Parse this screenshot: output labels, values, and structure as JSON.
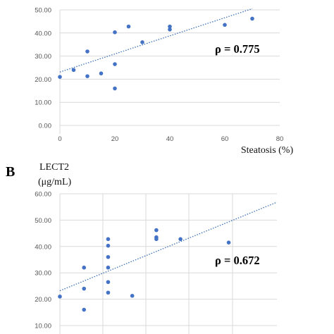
{
  "colors": {
    "points": "#4472c4",
    "trendline": "#3a6fb5",
    "gridlines": "#d9d9d9",
    "ticks": "#555555"
  },
  "chart_data": [
    {
      "type": "scatter",
      "panel": "",
      "ylabel": "",
      "xlabel": "Steatosis (%)",
      "annotation": "ρ = 0.775",
      "xlim": [
        0,
        80
      ],
      "ylim": [
        0,
        50
      ],
      "xticks": [
        "0",
        "20",
        "40",
        "60",
        "80"
      ],
      "yticks": [
        "0.00",
        "10.00",
        "20.00",
        "30.00",
        "40.00",
        "50.00"
      ],
      "grid": "horizontal",
      "points": [
        {
          "x": 0,
          "y": 21.0
        },
        {
          "x": 5,
          "y": 24.0
        },
        {
          "x": 10,
          "y": 32.0
        },
        {
          "x": 10,
          "y": 21.3
        },
        {
          "x": 15,
          "y": 22.5
        },
        {
          "x": 20,
          "y": 40.3
        },
        {
          "x": 20,
          "y": 26.5
        },
        {
          "x": 20,
          "y": 16.0
        },
        {
          "x": 25,
          "y": 42.8
        },
        {
          "x": 30,
          "y": 36.0
        },
        {
          "x": 40,
          "y": 42.8
        },
        {
          "x": 40,
          "y": 41.5
        },
        {
          "x": 60,
          "y": 43.5
        },
        {
          "x": 70,
          "y": 46.2
        }
      ],
      "trendline": {
        "x": [
          0,
          70
        ],
        "y": [
          23.1,
          50.5
        ]
      }
    },
    {
      "type": "scatter",
      "panel": "B",
      "ylabel": [
        "LECT2",
        "(μg/mL)"
      ],
      "xlabel": "",
      "annotation": "ρ = 0.672",
      "xlim": [
        0,
        45
      ],
      "ylim": [
        10,
        60
      ],
      "xticks": [],
      "yticks": [
        "10.00",
        "20.00",
        "30.00",
        "40.00",
        "50.00",
        "60.00"
      ],
      "grid": "both",
      "points": [
        {
          "x": 0,
          "y": 21.0
        },
        {
          "x": 5,
          "y": 24.0
        },
        {
          "x": 5,
          "y": 32.0
        },
        {
          "x": 5,
          "y": 16.0
        },
        {
          "x": 10,
          "y": 42.8
        },
        {
          "x": 10,
          "y": 40.3
        },
        {
          "x": 10,
          "y": 36.0
        },
        {
          "x": 10,
          "y": 32.0
        },
        {
          "x": 10,
          "y": 26.5
        },
        {
          "x": 10,
          "y": 22.5
        },
        {
          "x": 15,
          "y": 21.3
        },
        {
          "x": 20,
          "y": 46.2
        },
        {
          "x": 20,
          "y": 43.5
        },
        {
          "x": 20,
          "y": 42.8
        },
        {
          "x": 25,
          "y": 42.8
        },
        {
          "x": 35,
          "y": 41.5
        }
      ],
      "trendline": {
        "x": [
          0,
          45
        ],
        "y": [
          23.2,
          56.8
        ]
      }
    }
  ]
}
